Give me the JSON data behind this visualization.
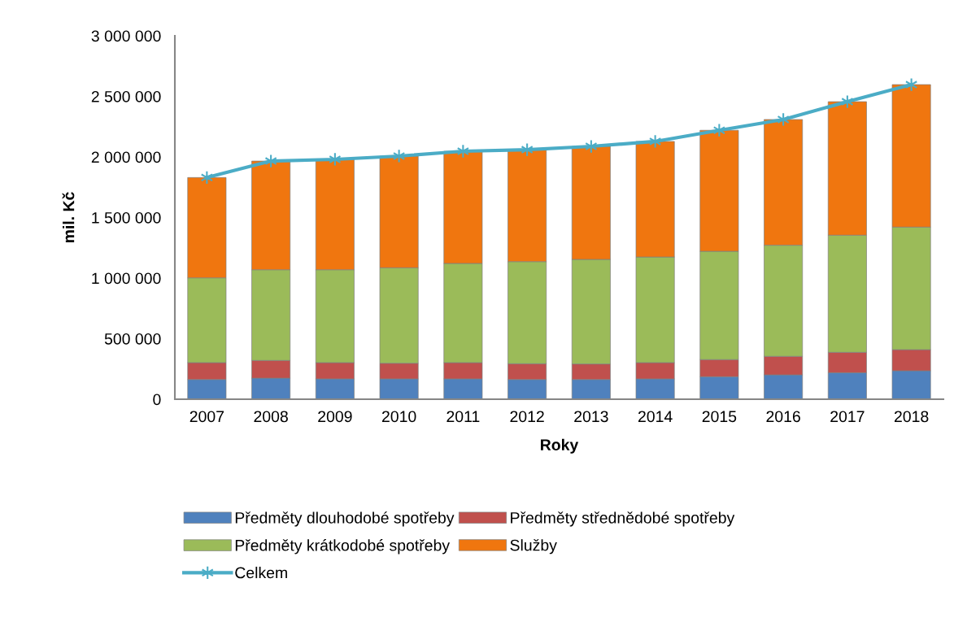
{
  "chart_data": {
    "type": "bar",
    "stacked": true,
    "xlabel": "Roky",
    "ylabel": "mil. Kč",
    "categories": [
      "2007",
      "2008",
      "2009",
      "2010",
      "2011",
      "2012",
      "2013",
      "2014",
      "2015",
      "2016",
      "2017",
      "2018"
    ],
    "series": [
      {
        "name": "Předměty dlouhodobé spotřeby",
        "color": "#4f81bd",
        "values": [
          163000,
          174000,
          168000,
          168000,
          168000,
          163000,
          163000,
          168000,
          186000,
          201000,
          219000,
          235000
        ]
      },
      {
        "name": "Předměty střednědobé spotřeby",
        "color": "#c0504d",
        "values": [
          139000,
          146000,
          134000,
          129000,
          134000,
          130000,
          128000,
          134000,
          141000,
          153000,
          168000,
          174000
        ]
      },
      {
        "name": "Předměty krátkodobé spotřeby",
        "color": "#9bbb59",
        "values": [
          700000,
          749000,
          767000,
          788000,
          819000,
          843000,
          863000,
          872000,
          894000,
          917000,
          967000,
          1012000
        ]
      },
      {
        "name": "Služby",
        "color": "#f0760f",
        "values": [
          828000,
          897000,
          911000,
          922000,
          926000,
          924000,
          933000,
          954000,
          999000,
          1038000,
          1102000,
          1176000
        ]
      },
      {
        "name": "Celkem",
        "type": "line",
        "color": "#4bacc6",
        "marker": "cross",
        "values": [
          1830000,
          1966000,
          1980000,
          2007000,
          2047000,
          2060000,
          2087000,
          2128000,
          2220000,
          2309000,
          2456000,
          2597000
        ]
      }
    ],
    "ylim": [
      0,
      3000000
    ],
    "yticks": [
      {
        "value": 0,
        "label": "0"
      },
      {
        "value": 500000,
        "label": "500 000"
      },
      {
        "value": 1000000,
        "label": "1 000 000"
      },
      {
        "value": 1500000,
        "label": "1 500 000"
      },
      {
        "value": 2000000,
        "label": "2 000 000"
      },
      {
        "value": 2500000,
        "label": "2 500 000"
      },
      {
        "value": 3000000,
        "label": "3 000 000"
      }
    ],
    "grid": false,
    "legend": "bottom"
  }
}
